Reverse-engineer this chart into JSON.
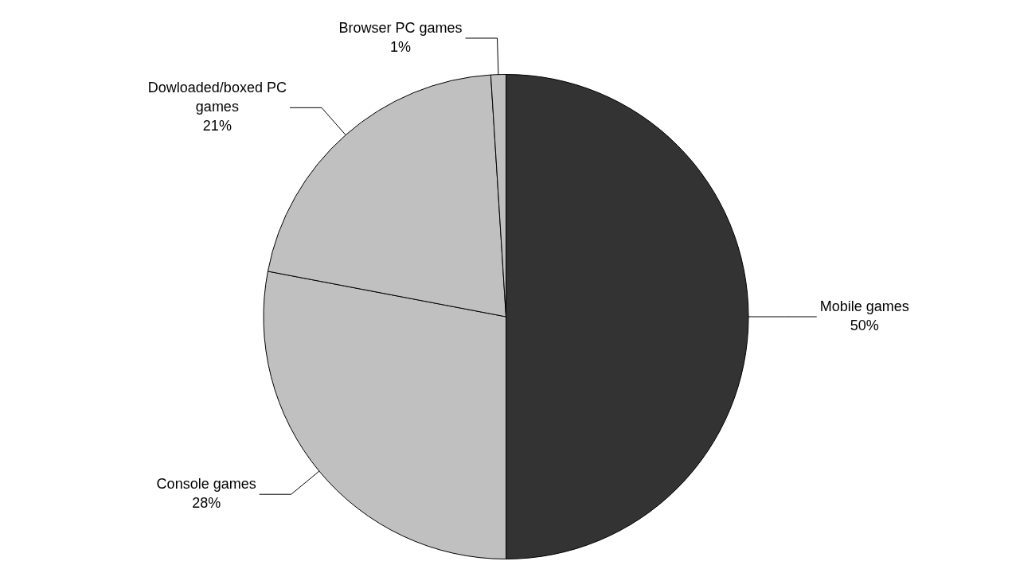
{
  "chart_data": {
    "type": "pie",
    "categories": [
      "Mobile games",
      "Console games",
      "Dowloaded/boxed PC games",
      "Browser PC games"
    ],
    "values": [
      50,
      28,
      21,
      1
    ],
    "colors": [
      "#333333",
      "#c0c0c0",
      "#c0c0c0",
      "#c0c0c0"
    ],
    "value_labels": [
      "50%",
      "28%",
      "21%",
      "1%"
    ],
    "legend": false
  }
}
